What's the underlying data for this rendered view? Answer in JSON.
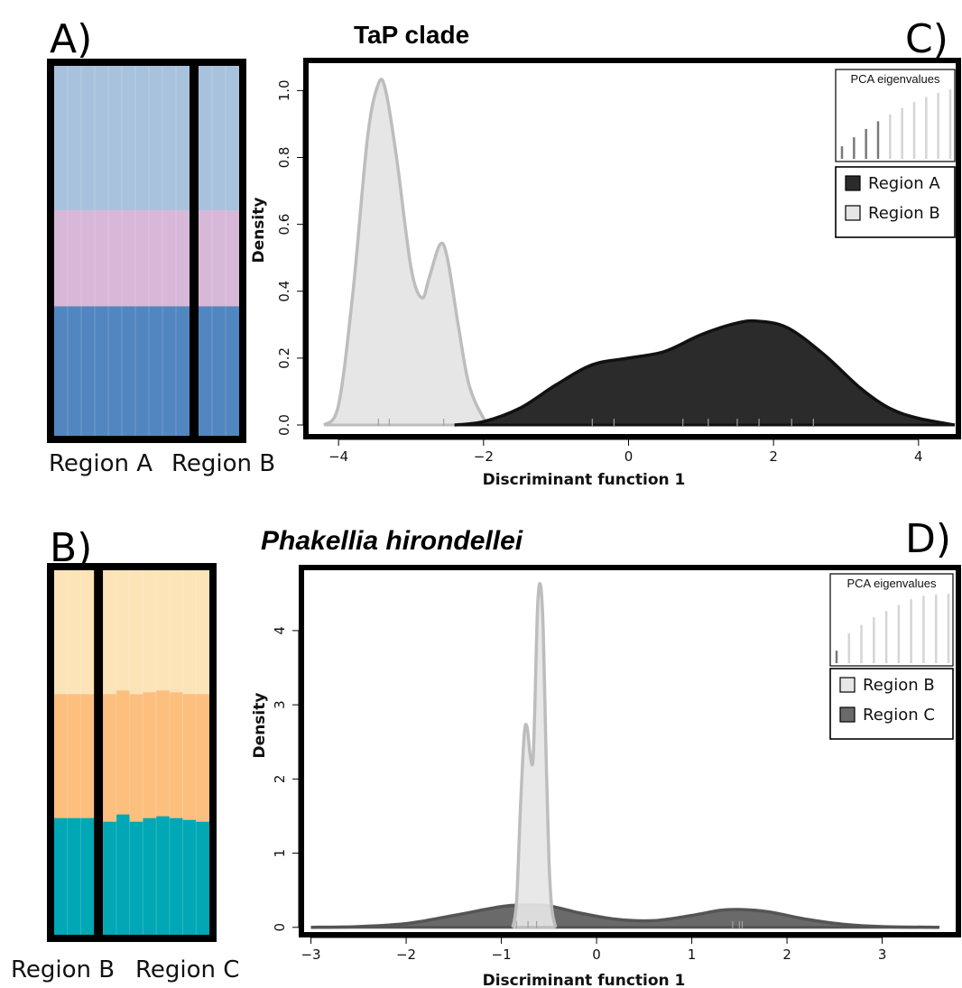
{
  "panels": {
    "A": {
      "letter": "A)",
      "bar_colors": [
        "#a8c2dd",
        "#d8b8d8",
        "#5286c0"
      ],
      "group_labels": [
        "Region A",
        "Region B"
      ],
      "groups": [
        {
          "name": "Region A",
          "individuals": [
            [
              0.39,
              0.26,
              0.35
            ],
            [
              0.39,
              0.26,
              0.35
            ],
            [
              0.39,
              0.26,
              0.35
            ],
            [
              0.39,
              0.26,
              0.35
            ],
            [
              0.39,
              0.26,
              0.35
            ],
            [
              0.39,
              0.26,
              0.35
            ],
            [
              0.39,
              0.26,
              0.35
            ],
            [
              0.39,
              0.26,
              0.35
            ],
            [
              0.39,
              0.26,
              0.35
            ],
            [
              0.39,
              0.26,
              0.35
            ]
          ]
        },
        {
          "name": "Region B",
          "individuals": [
            [
              0.39,
              0.26,
              0.35
            ],
            [
              0.39,
              0.26,
              0.35
            ],
            [
              0.39,
              0.26,
              0.35
            ]
          ]
        }
      ]
    },
    "B": {
      "letter": "B)",
      "bar_colors": [
        "#fce3b8",
        "#fcbf7e",
        "#00a7b5"
      ],
      "group_labels": [
        "Region B",
        "Region C"
      ],
      "groups": [
        {
          "name": "Region B",
          "individuals": [
            [
              0.34,
              0.34,
              0.32
            ],
            [
              0.34,
              0.34,
              0.32
            ],
            [
              0.34,
              0.34,
              0.32
            ]
          ]
        },
        {
          "name": "Region C",
          "individuals": [
            [
              0.34,
              0.35,
              0.31
            ],
            [
              0.33,
              0.34,
              0.33
            ],
            [
              0.34,
              0.35,
              0.31
            ],
            [
              0.335,
              0.345,
              0.32
            ],
            [
              0.33,
              0.345,
              0.325
            ],
            [
              0.335,
              0.345,
              0.32
            ],
            [
              0.34,
              0.345,
              0.315
            ],
            [
              0.34,
              0.35,
              0.31
            ]
          ]
        }
      ]
    },
    "C": {
      "letter": "C)",
      "title": "TaP clade"
    },
    "D": {
      "letter": "D)",
      "title": "Phakellia hirondellei"
    }
  },
  "eigen_title": "PCA eigenvalues",
  "chart_data": [
    {
      "type": "area",
      "panel": "C",
      "title": "TaP clade",
      "xlabel": "Discriminant function 1",
      "ylabel": "Density",
      "xlim": [
        -4.45,
        4.55
      ],
      "ylim": [
        -0.035,
        1.09
      ],
      "xticks": [
        -4,
        -2,
        0,
        2,
        4
      ],
      "xtick_labels": [
        "−4",
        "−2",
        "0",
        "2",
        "4"
      ],
      "yticks": [
        0.0,
        0.2,
        0.4,
        0.6,
        0.8,
        1.0
      ],
      "ytick_labels": [
        "0.0",
        "0.2",
        "0.4",
        "0.6",
        "0.8",
        "1.0"
      ],
      "legend": {
        "placement": "top-right",
        "entries": [
          "Region A",
          "Region B"
        ]
      },
      "series": [
        {
          "name": "Region B",
          "fill": "#e6e6e6",
          "stroke": "#bdbdbd",
          "x": [
            -4.2,
            -4.0,
            -3.8,
            -3.6,
            -3.45,
            -3.35,
            -3.2,
            -3.0,
            -2.85,
            -2.75,
            -2.6,
            -2.5,
            -2.35,
            -2.2,
            -2.0,
            -1.9
          ],
          "y": [
            0.0,
            0.06,
            0.4,
            0.86,
            1.02,
            1.0,
            0.8,
            0.47,
            0.38,
            0.44,
            0.54,
            0.5,
            0.3,
            0.12,
            0.02,
            0.0
          ],
          "rug": [
            -3.45,
            -3.3,
            -2.55
          ]
        },
        {
          "name": "Region A",
          "fill": "#2b2b2b",
          "stroke": "#111111",
          "x": [
            -2.4,
            -2.0,
            -1.5,
            -1.0,
            -0.5,
            0.0,
            0.5,
            1.0,
            1.5,
            1.8,
            2.2,
            2.7,
            3.2,
            3.6,
            4.0,
            4.5
          ],
          "y": [
            0.0,
            0.01,
            0.05,
            0.12,
            0.18,
            0.2,
            0.22,
            0.27,
            0.305,
            0.31,
            0.29,
            0.21,
            0.11,
            0.05,
            0.02,
            0.0
          ],
          "rug": [
            -0.5,
            -0.2,
            0.75,
            1.1,
            1.5,
            1.8,
            2.25,
            2.55
          ]
        }
      ],
      "eigenvalues": [
        0.18,
        0.31,
        0.43,
        0.54,
        0.64,
        0.73,
        0.82,
        0.89,
        0.95,
        1.0
      ],
      "eigen_retained": 4
    },
    {
      "type": "area",
      "panel": "D",
      "title": "Phakellia hirondellei",
      "xlabel": "Discriminant function 1",
      "ylabel": "Density",
      "xlim": [
        -3.1,
        3.8
      ],
      "ylim": [
        -0.1,
        4.85
      ],
      "xticks": [
        -3,
        -2,
        -1,
        0,
        1,
        2,
        3
      ],
      "xtick_labels": [
        "−3",
        "−2",
        "−1",
        "0",
        "1",
        "2",
        "3"
      ],
      "yticks": [
        0,
        1,
        2,
        3,
        4
      ],
      "ytick_labels": [
        "0",
        "1",
        "2",
        "3",
        "4"
      ],
      "legend": {
        "placement": "top-right",
        "entries": [
          "Region B",
          "Region C"
        ]
      },
      "series": [
        {
          "name": "Region C",
          "fill": "#6a6a6a",
          "stroke": "#555555",
          "x": [
            -3.0,
            -2.5,
            -2.0,
            -1.5,
            -1.0,
            -0.75,
            -0.5,
            -0.2,
            0.2,
            0.6,
            1.0,
            1.3,
            1.5,
            1.8,
            2.2,
            2.6,
            3.0,
            3.6
          ],
          "y": [
            0.0,
            0.01,
            0.05,
            0.16,
            0.28,
            0.3,
            0.29,
            0.2,
            0.11,
            0.09,
            0.16,
            0.23,
            0.24,
            0.21,
            0.11,
            0.04,
            0.01,
            0.0
          ],
          "rug": [
            -0.82,
            -0.74,
            -0.63,
            -0.58,
            -0.52,
            -0.47,
            1.43,
            1.5,
            1.53
          ]
        },
        {
          "name": "Region B",
          "fill": "#e6e6e6",
          "stroke": "#bdbdbd",
          "x": [
            -0.88,
            -0.84,
            -0.8,
            -0.76,
            -0.73,
            -0.7,
            -0.67,
            -0.65,
            -0.62,
            -0.59,
            -0.56,
            -0.53,
            -0.5,
            -0.47,
            -0.43
          ],
          "y": [
            0.0,
            0.35,
            1.6,
            2.6,
            2.7,
            2.35,
            2.22,
            2.9,
            4.3,
            4.62,
            4.0,
            2.3,
            0.9,
            0.25,
            0.0
          ],
          "rug": [
            -0.84,
            -0.72,
            -0.63
          ]
        }
      ],
      "eigenvalues": [
        0.18,
        0.43,
        0.55,
        0.66,
        0.75,
        0.84,
        0.92,
        0.97,
        0.99,
        1.0
      ],
      "eigen_retained": 1
    }
  ]
}
